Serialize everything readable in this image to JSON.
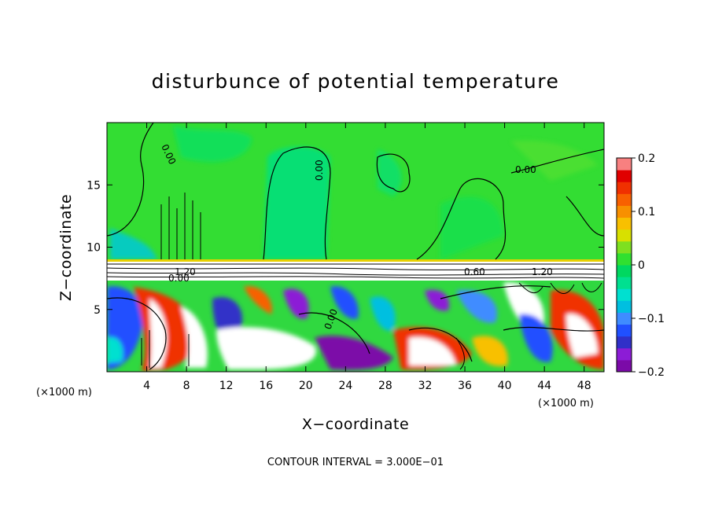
{
  "chart_data": {
    "type": "heatmap",
    "title": "disturbunce of potential temperature",
    "xlabel": "X−coordinate",
    "ylabel": "Z−coordinate",
    "x_unit": "(×1000 m)",
    "x_unit_right": "(×1000 m)",
    "xlim": [
      0,
      50
    ],
    "ylim": [
      0,
      20
    ],
    "x_ticks": [
      4,
      8,
      12,
      16,
      20,
      24,
      28,
      32,
      36,
      40,
      44,
      48
    ],
    "y_ticks": [
      5,
      10,
      15
    ],
    "colorbar": {
      "range": [
        -0.2,
        0.2
      ],
      "ticks": [
        0.2,
        0.1,
        0,
        -0.1,
        -0.2
      ],
      "tick_labels": [
        "0.2",
        "0.1",
        "0",
        "−0.1",
        "−0.2"
      ],
      "colors": [
        "#7b0aa8",
        "#8c1cd6",
        "#3030c8",
        "#2050ff",
        "#3f8cff",
        "#00bfe0",
        "#00e0d0",
        "#00e090",
        "#00d860",
        "#30e030",
        "#7ee020",
        "#d8e000",
        "#f8c000",
        "#f89000",
        "#f86000",
        "#f03000",
        "#e00000",
        "#f88080"
      ]
    },
    "field_summary": {
      "upper_layer_value": 0.0,
      "interface_height": 8.8,
      "lower_layer_range": [
        -0.2,
        0.2
      ]
    },
    "contour_labels": [
      "0.00",
      "0.00",
      "0.00",
      "0.00",
      "1.20",
      "0.00",
      "0.60",
      "1.20"
    ],
    "footer": "CONTOUR INTERVAL = 3.000E−01"
  }
}
